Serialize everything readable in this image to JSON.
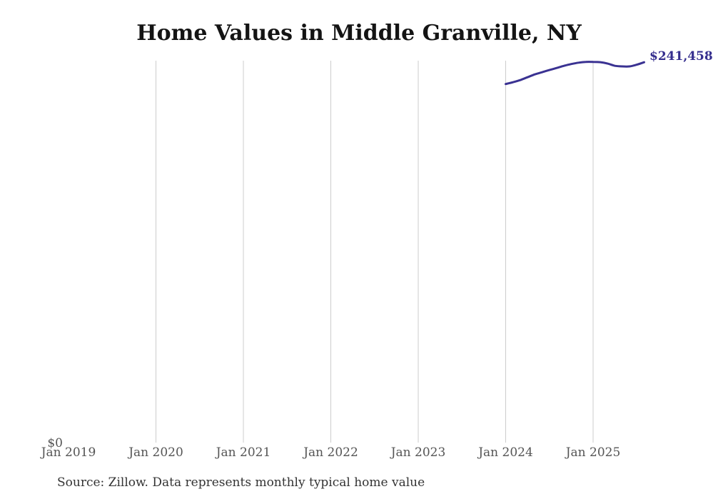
{
  "chart": {
    "title": "Home Values in Middle Granville, NY",
    "y_zero_label": "$0",
    "end_value_label": "$241,458",
    "source_note": "Source: Zillow. Data represents monthly typical home value"
  },
  "colors": {
    "line": "#3a3292",
    "value_label": "#352e8e",
    "gridline": "#cccccc",
    "axis_text": "#555555",
    "title_text": "#141414",
    "source_text": "#333333",
    "background": "#ffffff"
  },
  "chart_data": {
    "type": "line",
    "title": "Home Values in Middle Granville, NY",
    "xlabel": "",
    "ylabel": "",
    "ylim": [
      0,
      242000
    ],
    "grid": "vertical-only",
    "legend": "none",
    "x_tick_labels": [
      "Jan 2019",
      "Jan 2020",
      "Jan 2021",
      "Jan 2022",
      "Jan 2023",
      "Jan 2024",
      "Jan 2025"
    ],
    "x_tick_months": [
      "2019-01",
      "2020-01",
      "2021-01",
      "2022-01",
      "2023-01",
      "2024-01",
      "2025-01"
    ],
    "gridline_months": [
      "2020-01",
      "2021-01",
      "2022-01",
      "2023-01",
      "2024-01",
      "2025-01"
    ],
    "y_axis_shown_label": "$0",
    "end_point_label": "$241,458",
    "series": [
      {
        "name": "Monthly typical home value",
        "x": [
          "2024-01",
          "2024-02",
          "2024-03",
          "2024-04",
          "2024-05",
          "2024-06",
          "2024-07",
          "2024-08",
          "2024-09",
          "2024-10",
          "2024-11",
          "2024-12",
          "2025-01",
          "2025-02",
          "2025-03",
          "2025-04",
          "2025-05",
          "2025-06",
          "2025-07",
          "2025-08"
        ],
        "values": [
          227600,
          228700,
          230100,
          231900,
          233700,
          235100,
          236500,
          237800,
          239200,
          240300,
          241200,
          241700,
          241700,
          241500,
          240600,
          239200,
          238800,
          238800,
          239900,
          241458
        ]
      }
    ]
  }
}
